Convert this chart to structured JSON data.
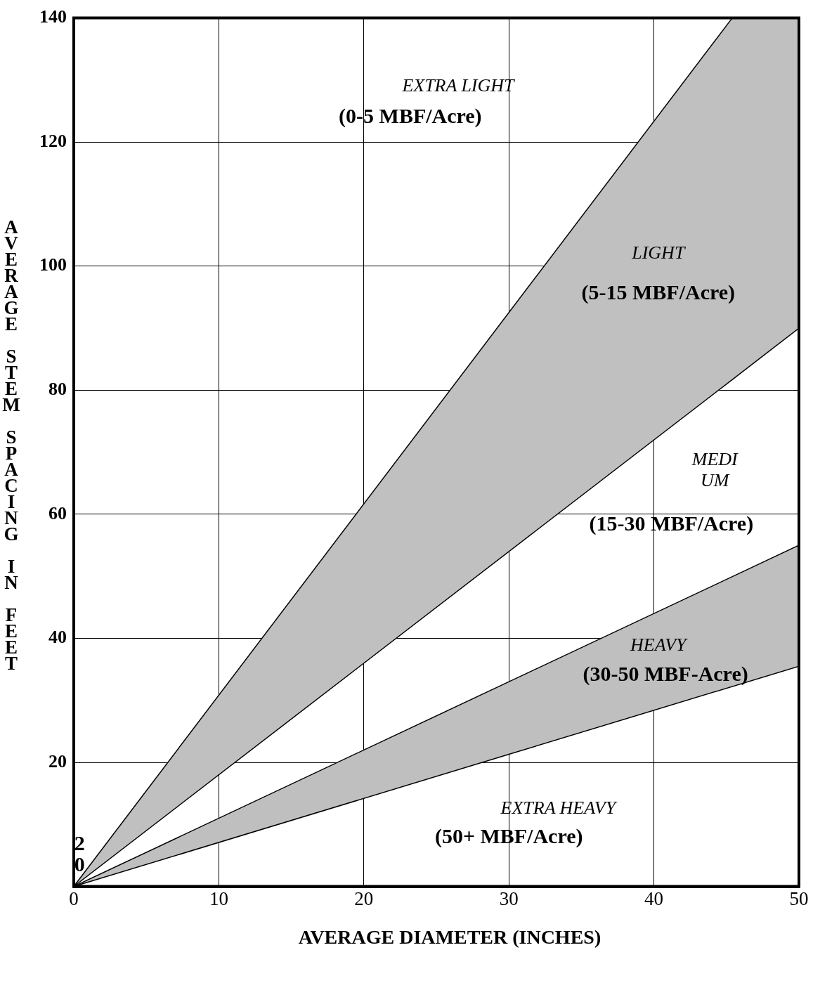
{
  "chart_data": {
    "type": "line",
    "xlabel": "AVERAGE DIAMETER (INCHES)",
    "ylabel": "AVERAGE STEM SPACING IN FEET",
    "xlim": [
      0,
      50
    ],
    "xticks": [
      0,
      10,
      20,
      30,
      40,
      50
    ],
    "ylim": [
      0,
      140
    ],
    "yticks": [
      20,
      40,
      60,
      80,
      100,
      120,
      140
    ],
    "grid": true,
    "legend": false,
    "marker": "none",
    "line_style": "solid",
    "series": [
      {
        "type": "line",
        "color": "#000000",
        "x": [
          0,
          45.4,
          50
        ],
        "values": [
          0,
          81.7,
          90
        ],
        "lower": [
          0,
          81.7,
          90
        ],
        "upper": [
          0,
          140,
          140
        ]
      },
      {
        "type": "line",
        "color": "#000000",
        "x": [
          0,
          30,
          50
        ],
        "values": [
          0,
          21.3,
          35.5
        ],
        "lower": [
          0,
          21.3,
          35.5
        ],
        "upper": [
          0,
          33,
          55
        ]
      },
      {
        "type": "line",
        "color": "#000000",
        "x": [
          0,
          45.4
        ],
        "values": [
          0,
          140
        ]
      },
      {
        "type": "line",
        "color": "#000000",
        "x": [
          0,
          50
        ],
        "values": [
          0,
          55
        ]
      }
    ],
    "annotations": [
      "EXTRA LIGHT",
      "(0-5 MBF/Acre)",
      "LIGHT",
      "(5-15 MBF/Acre)",
      "MEDI UM",
      "(15-30 MBF/Acre)",
      "HEAVY",
      "(30-50 MBF-Acre)",
      "EXTRA HEAVY",
      "(50+ MBF/Acre)",
      "2 0"
    ]
  }
}
